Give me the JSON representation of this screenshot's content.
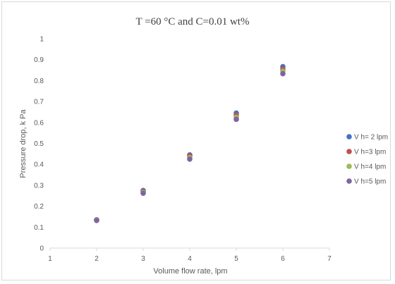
{
  "chart_data": {
    "type": "scatter",
    "title": "T =60 °C and C=0.01  wt%",
    "xlabel": "Volume flow rate, lpm",
    "ylabel": "Pressure drop, k Pa",
    "xlim": [
      1,
      7
    ],
    "ylim": [
      0,
      1
    ],
    "xticks": [
      "1",
      "2",
      "3",
      "4",
      "5",
      "6",
      "7"
    ],
    "yticks": [
      "0",
      "0.1",
      "0.2",
      "0.3",
      "0.4",
      "0.5",
      "0.6",
      "0.7",
      "0.8",
      "0.9",
      "1"
    ],
    "grid": false,
    "legend_position": "right",
    "series": [
      {
        "name": "V h= 2 lpm",
        "color": "#4472C4",
        "x": [
          2,
          3,
          4,
          5,
          6
        ],
        "y": [
          0.135,
          0.275,
          0.445,
          0.645,
          0.867
        ]
      },
      {
        "name": "V h=3 lpm",
        "color": "#C0504D",
        "x": [
          2,
          3,
          4,
          5,
          6
        ],
        "y": [
          0.134,
          0.27,
          0.44,
          0.635,
          0.855
        ]
      },
      {
        "name": "V h=4 lpm",
        "color": "#9BBB59",
        "x": [
          2,
          3,
          4,
          5,
          6
        ],
        "y": [
          0.133,
          0.266,
          0.432,
          0.625,
          0.845
        ]
      },
      {
        "name": "V h=5 lpm",
        "color": "#8064A2",
        "x": [
          2,
          3,
          4,
          5,
          6
        ],
        "y": [
          0.132,
          0.262,
          0.425,
          0.615,
          0.833
        ]
      }
    ]
  }
}
